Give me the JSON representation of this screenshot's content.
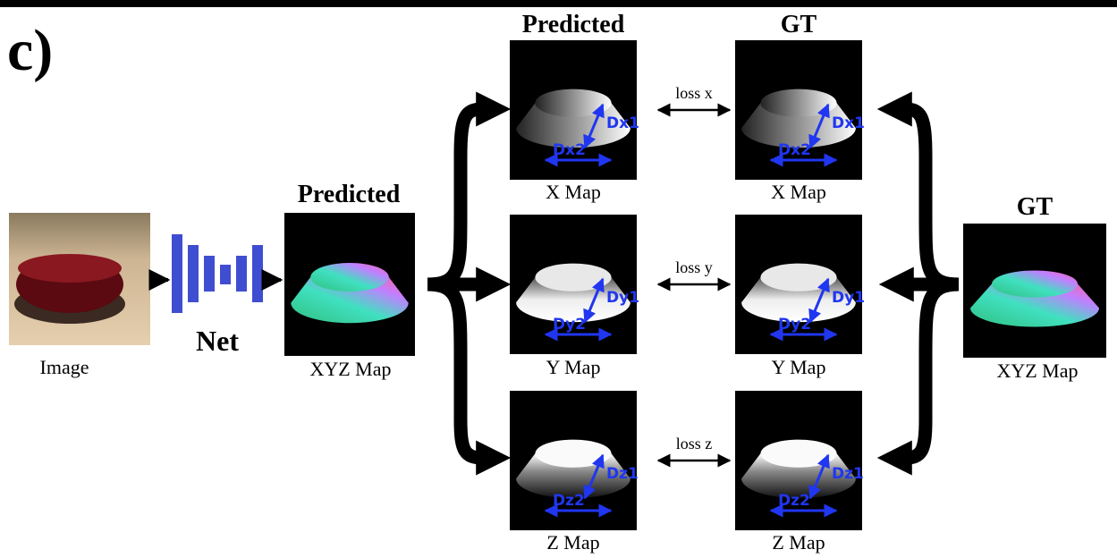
{
  "panel_label": "c)",
  "input": {
    "caption": "Image"
  },
  "net": {
    "label": "Net"
  },
  "predicted_xyz": {
    "title": "Predicted",
    "caption": "XYZ Map"
  },
  "gt_xyz": {
    "title": "GT",
    "caption": "XYZ Map"
  },
  "predicted_column": {
    "title": "Predicted",
    "maps": [
      {
        "caption": "X Map",
        "d1": "Dx1",
        "d2": "Dx2"
      },
      {
        "caption": "Y Map",
        "d1": "Dy1",
        "d2": "Dy2"
      },
      {
        "caption": "Z Map",
        "d1": "Dz1",
        "d2": "Dz2"
      }
    ]
  },
  "gt_column": {
    "title": "GT",
    "maps": [
      {
        "caption": "X Map",
        "d1": "Dx1",
        "d2": "Dx2"
      },
      {
        "caption": "Y Map",
        "d1": "Dy1",
        "d2": "Dy2"
      },
      {
        "caption": "Z Map",
        "d1": "Dz1",
        "d2": "Dz2"
      }
    ]
  },
  "losses": [
    "loss x",
    "loss y",
    "loss z"
  ]
}
